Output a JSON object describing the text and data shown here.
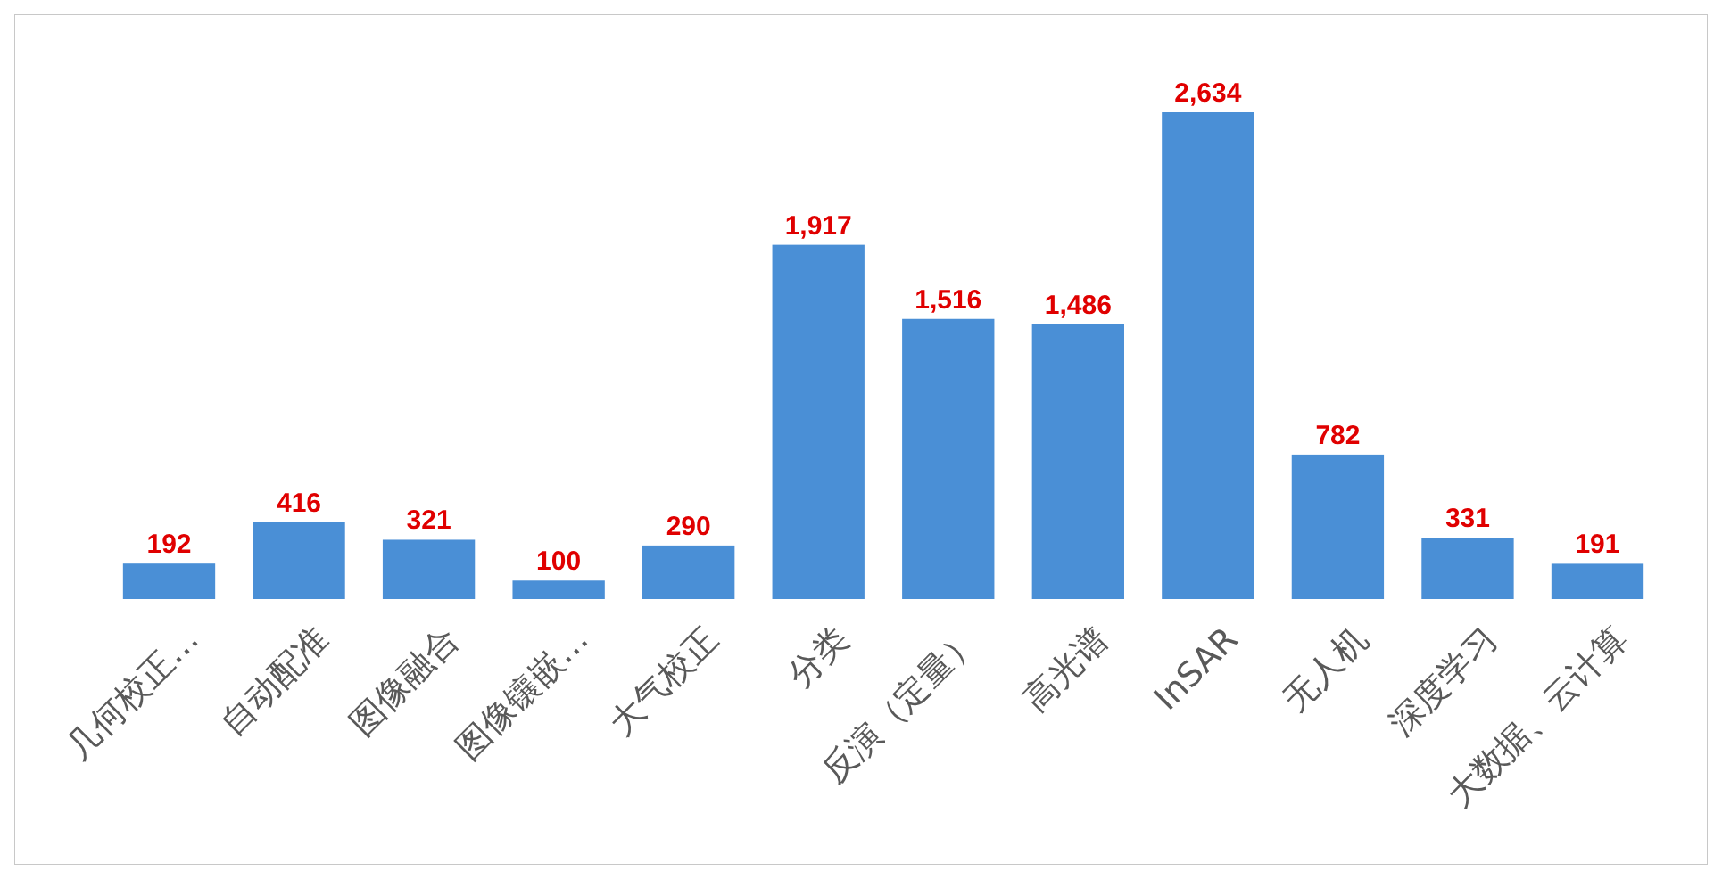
{
  "chart_data": {
    "type": "bar",
    "categories": [
      "几何校正…",
      "自动配准",
      "图像融合",
      "图像镶嵌…",
      "大气校正",
      "分类",
      "反演（定量）",
      "高光谱",
      "InSAR",
      "无人机",
      "深度学习",
      "大数据、云计算"
    ],
    "values": [
      192,
      416,
      321,
      100,
      290,
      1917,
      1516,
      1486,
      2634,
      782,
      331,
      191
    ],
    "value_labels": [
      "192",
      "416",
      "321",
      "100",
      "290",
      "1,917",
      "1,516",
      "1,486",
      "2,634",
      "782",
      "331",
      "191"
    ],
    "color": "#4a8fd6"
  }
}
